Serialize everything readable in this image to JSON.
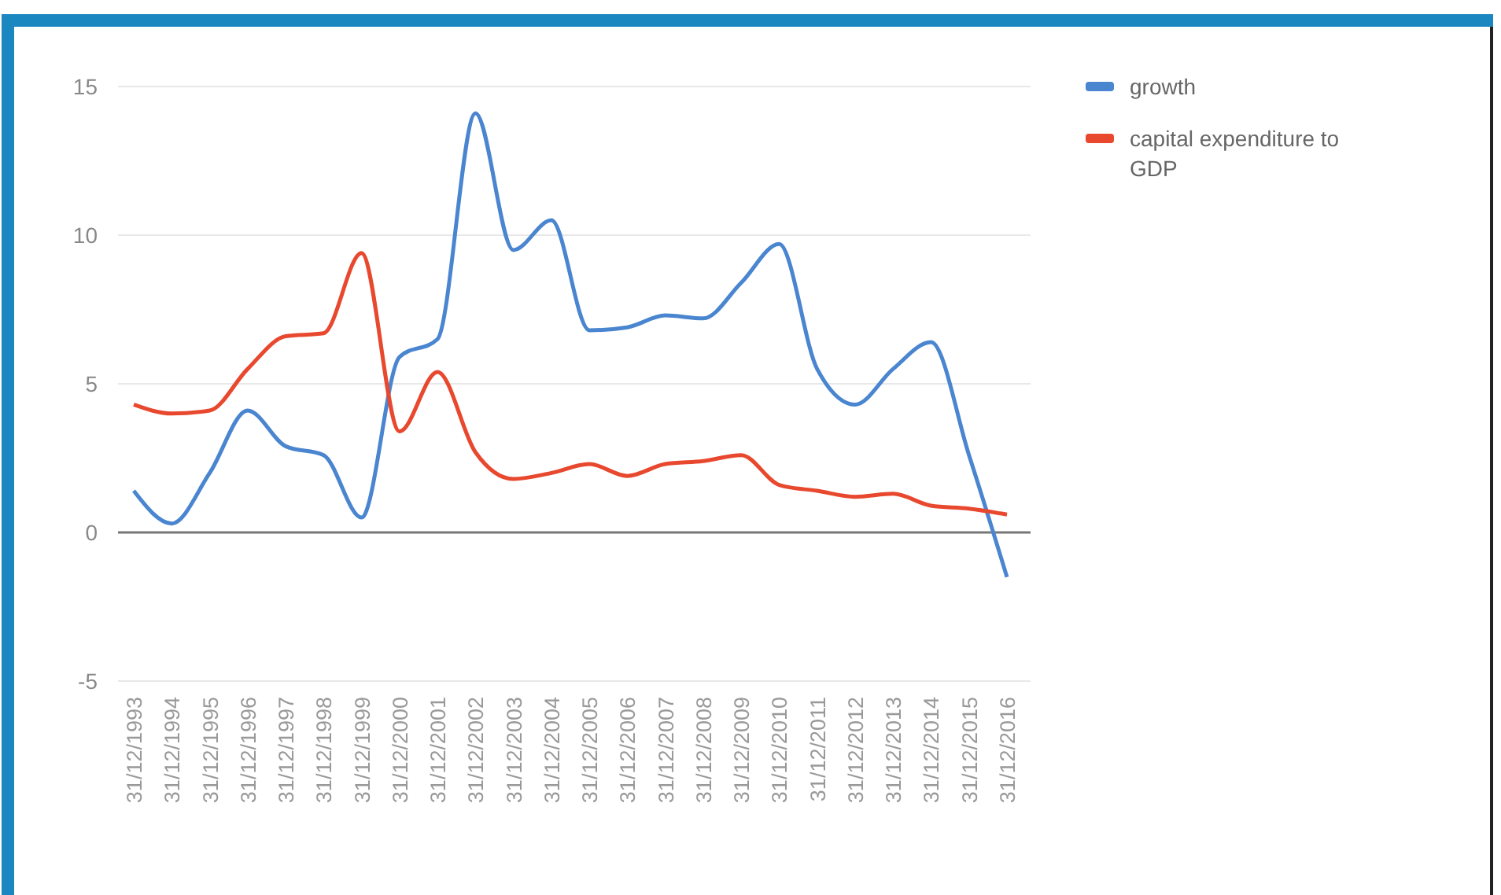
{
  "chart_data": {
    "type": "line",
    "categories": [
      "31/12/1993",
      "31/12/1994",
      "31/12/1995",
      "31/12/1996",
      "31/12/1997",
      "31/12/1998",
      "31/12/1999",
      "31/12/2000",
      "31/12/2001",
      "31/12/2002",
      "31/12/2003",
      "31/12/2004",
      "31/12/2005",
      "31/12/2006",
      "31/12/2007",
      "31/12/2008",
      "31/12/2009",
      "31/12/2010",
      "31/12/2011",
      "31/12/2012",
      "31/12/2013",
      "31/12/2014",
      "31/12/2015",
      "31/12/2016"
    ],
    "series": [
      {
        "name": "growth",
        "color": "#4a85d0",
        "values": [
          1.4,
          0.3,
          2.0,
          4.1,
          2.9,
          2.6,
          0.5,
          5.9,
          6.5,
          14.1,
          9.5,
          10.5,
          6.8,
          6.9,
          7.3,
          7.2,
          8.4,
          9.7,
          5.5,
          4.3,
          5.5,
          6.4,
          2.6,
          -1.5
        ]
      },
      {
        "name": "capital expenditure to GDP",
        "color": "#e8482e",
        "values": [
          4.3,
          4.0,
          4.1,
          5.5,
          6.6,
          6.7,
          9.4,
          3.4,
          5.4,
          2.7,
          1.8,
          2.0,
          2.3,
          1.9,
          2.3,
          2.4,
          2.6,
          1.6,
          1.4,
          1.2,
          1.3,
          0.9,
          0.8,
          0.6
        ]
      }
    ],
    "ylim": [
      -5,
      15
    ],
    "yticks": [
      -5,
      0,
      5,
      10,
      15
    ],
    "grid": "y",
    "legend": "top right",
    "marker": "none",
    "line_style": "solid"
  }
}
